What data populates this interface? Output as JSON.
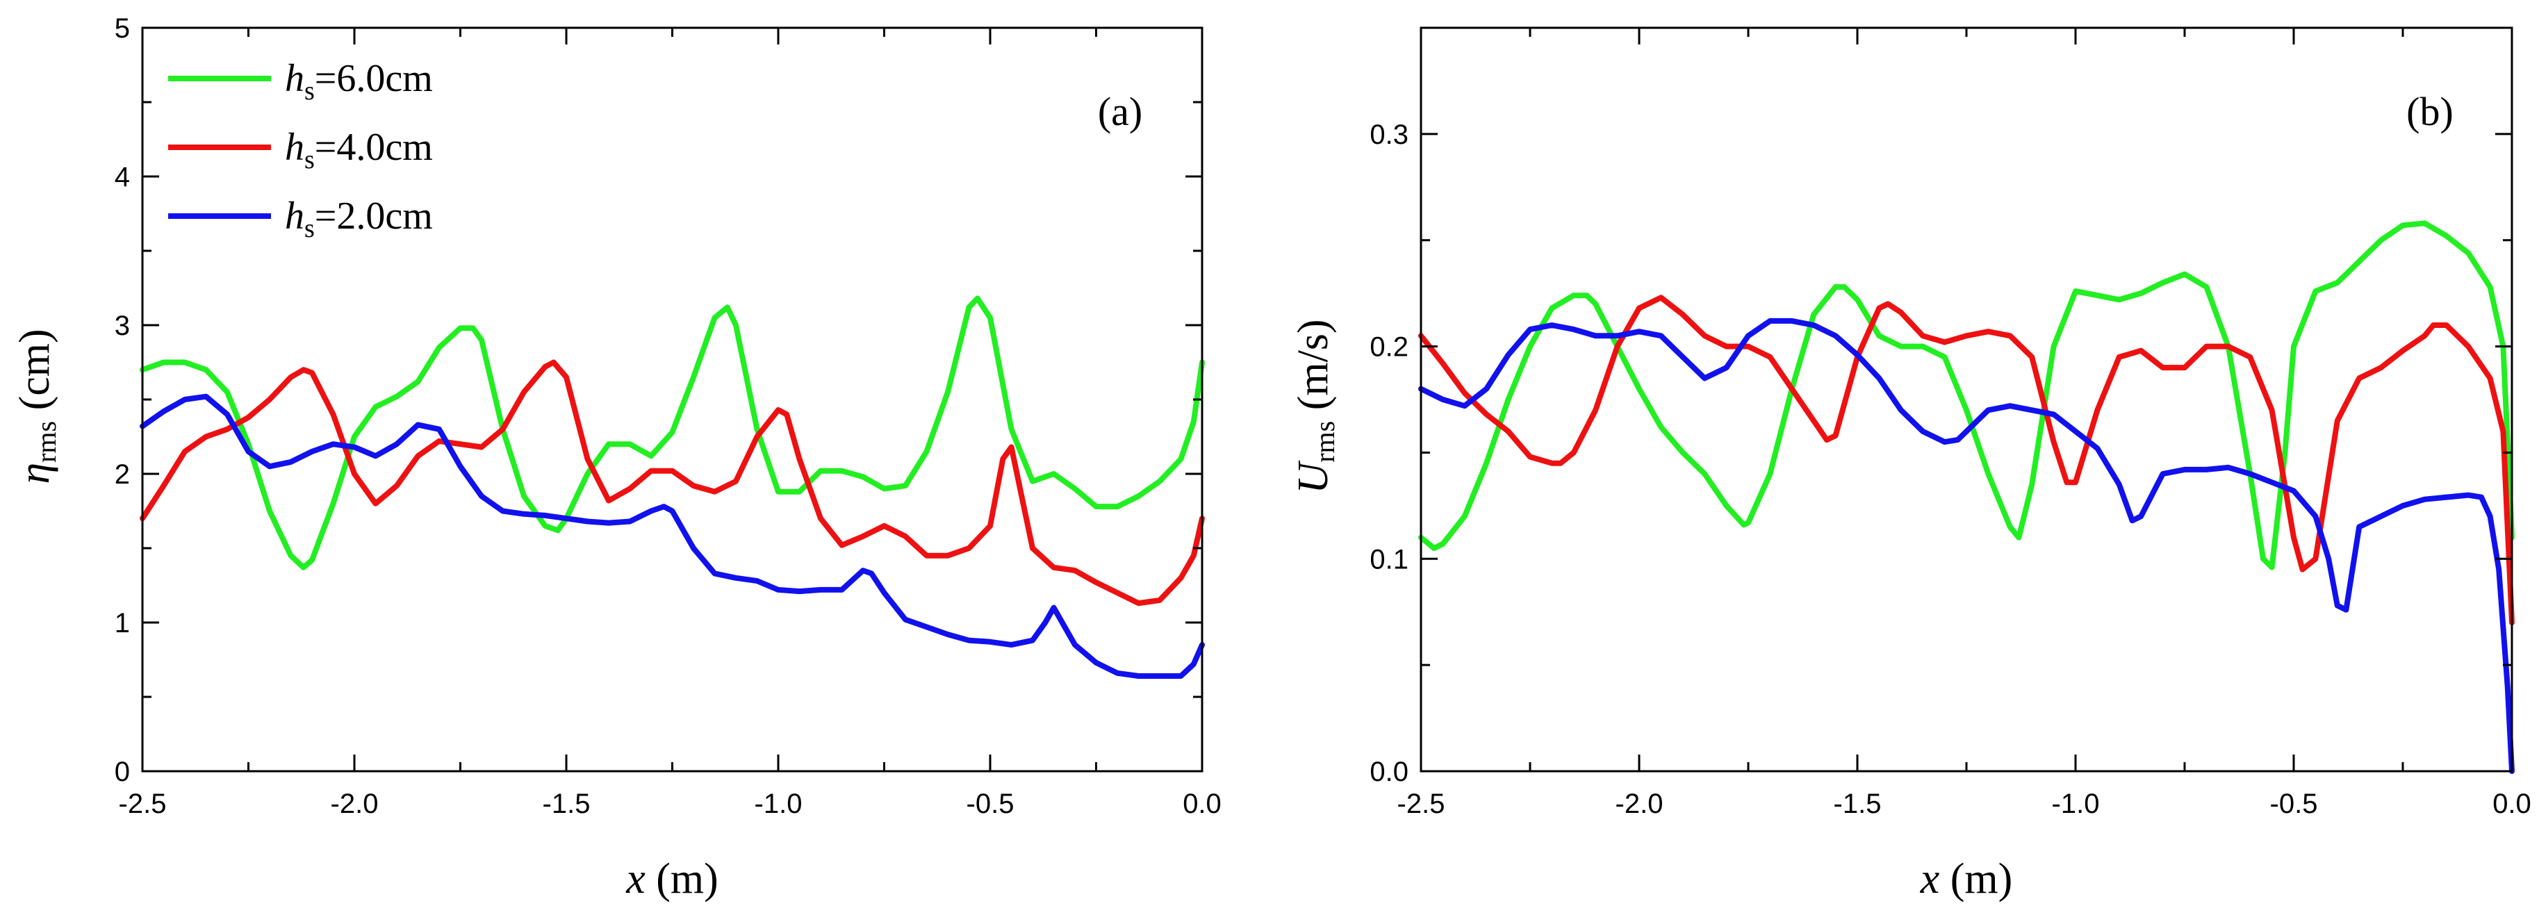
{
  "chart_data": [
    {
      "type": "line",
      "panel_label": "(a)",
      "xlabel": {
        "var": "x",
        "unit": "(m)"
      },
      "ylabel": {
        "var": "η",
        "sub": "rms",
        "unit": "(cm)"
      },
      "xlim": [
        -2.5,
        0.0
      ],
      "ylim": [
        0,
        5
      ],
      "xticks": [
        -2.5,
        -2.0,
        -1.5,
        -1.0,
        -0.5,
        0.0
      ],
      "xtick_labels": [
        "-2.5",
        "-2.0",
        "-1.5",
        "-1.0",
        "-0.5",
        "0.0"
      ],
      "yticks": [
        0,
        1,
        2,
        3,
        4,
        5
      ],
      "ytick_labels": [
        "0",
        "1",
        "2",
        "3",
        "4",
        "5"
      ],
      "legend_position": "top-left",
      "series": [
        {
          "name": "6.0cm",
          "prefix": "h",
          "sub": "s",
          "suffix": "=6.0cm",
          "color": "#22ee22",
          "x": [
            -2.5,
            -2.45,
            -2.4,
            -2.35,
            -2.3,
            -2.25,
            -2.2,
            -2.15,
            -2.12,
            -2.1,
            -2.05,
            -2.0,
            -1.95,
            -1.9,
            -1.85,
            -1.8,
            -1.75,
            -1.72,
            -1.7,
            -1.65,
            -1.6,
            -1.55,
            -1.52,
            -1.5,
            -1.45,
            -1.4,
            -1.35,
            -1.3,
            -1.25,
            -1.2,
            -1.15,
            -1.12,
            -1.1,
            -1.05,
            -1.0,
            -0.95,
            -0.9,
            -0.85,
            -0.8,
            -0.75,
            -0.7,
            -0.65,
            -0.6,
            -0.55,
            -0.53,
            -0.5,
            -0.45,
            -0.4,
            -0.35,
            -0.3,
            -0.25,
            -0.2,
            -0.15,
            -0.1,
            -0.05,
            -0.02,
            0.0
          ],
          "y": [
            2.7,
            2.75,
            2.75,
            2.7,
            2.55,
            2.2,
            1.75,
            1.45,
            1.37,
            1.42,
            1.8,
            2.25,
            2.45,
            2.52,
            2.62,
            2.85,
            2.98,
            2.98,
            2.9,
            2.3,
            1.85,
            1.65,
            1.62,
            1.7,
            2.0,
            2.2,
            2.2,
            2.12,
            2.28,
            2.65,
            3.05,
            3.12,
            3.0,
            2.3,
            1.88,
            1.88,
            2.02,
            2.02,
            1.98,
            1.9,
            1.92,
            2.15,
            2.55,
            3.12,
            3.18,
            3.05,
            2.3,
            1.95,
            2.0,
            1.9,
            1.78,
            1.78,
            1.85,
            1.95,
            2.1,
            2.35,
            2.75
          ]
        },
        {
          "name": "4.0cm",
          "prefix": "h",
          "sub": "s",
          "suffix": "=4.0cm",
          "color": "#ee1111",
          "x": [
            -2.5,
            -2.45,
            -2.4,
            -2.35,
            -2.3,
            -2.25,
            -2.2,
            -2.15,
            -2.12,
            -2.1,
            -2.05,
            -2.0,
            -1.95,
            -1.9,
            -1.85,
            -1.8,
            -1.75,
            -1.7,
            -1.65,
            -1.6,
            -1.55,
            -1.53,
            -1.5,
            -1.45,
            -1.4,
            -1.35,
            -1.3,
            -1.25,
            -1.2,
            -1.15,
            -1.1,
            -1.05,
            -1.0,
            -0.98,
            -0.95,
            -0.9,
            -0.85,
            -0.8,
            -0.75,
            -0.7,
            -0.65,
            -0.6,
            -0.55,
            -0.5,
            -0.47,
            -0.45,
            -0.4,
            -0.35,
            -0.3,
            -0.25,
            -0.2,
            -0.15,
            -0.1,
            -0.05,
            -0.02,
            0.0
          ],
          "y": [
            1.7,
            1.92,
            2.15,
            2.25,
            2.3,
            2.38,
            2.5,
            2.65,
            2.7,
            2.68,
            2.4,
            2.0,
            1.8,
            1.92,
            2.12,
            2.22,
            2.2,
            2.18,
            2.3,
            2.55,
            2.72,
            2.75,
            2.65,
            2.1,
            1.82,
            1.9,
            2.02,
            2.02,
            1.92,
            1.88,
            1.95,
            2.25,
            2.43,
            2.4,
            2.1,
            1.7,
            1.52,
            1.58,
            1.65,
            1.58,
            1.45,
            1.45,
            1.5,
            1.65,
            2.1,
            2.18,
            1.5,
            1.37,
            1.35,
            1.27,
            1.2,
            1.13,
            1.15,
            1.3,
            1.45,
            1.7
          ]
        },
        {
          "name": "2.0cm",
          "prefix": "h",
          "sub": "s",
          "suffix": "=2.0cm",
          "color": "#1111ee",
          "x": [
            -2.5,
            -2.45,
            -2.4,
            -2.35,
            -2.3,
            -2.25,
            -2.2,
            -2.15,
            -2.1,
            -2.05,
            -2.0,
            -1.95,
            -1.9,
            -1.85,
            -1.8,
            -1.75,
            -1.7,
            -1.65,
            -1.6,
            -1.55,
            -1.5,
            -1.45,
            -1.4,
            -1.35,
            -1.3,
            -1.27,
            -1.25,
            -1.2,
            -1.15,
            -1.1,
            -1.05,
            -1.0,
            -0.95,
            -0.9,
            -0.85,
            -0.8,
            -0.78,
            -0.75,
            -0.7,
            -0.65,
            -0.6,
            -0.55,
            -0.5,
            -0.45,
            -0.4,
            -0.37,
            -0.35,
            -0.3,
            -0.25,
            -0.2,
            -0.15,
            -0.1,
            -0.05,
            -0.02,
            0.0
          ],
          "y": [
            2.32,
            2.42,
            2.5,
            2.52,
            2.4,
            2.15,
            2.05,
            2.08,
            2.15,
            2.2,
            2.18,
            2.12,
            2.2,
            2.33,
            2.3,
            2.05,
            1.85,
            1.75,
            1.73,
            1.72,
            1.7,
            1.68,
            1.67,
            1.68,
            1.75,
            1.78,
            1.75,
            1.5,
            1.33,
            1.3,
            1.28,
            1.22,
            1.21,
            1.22,
            1.22,
            1.35,
            1.33,
            1.2,
            1.02,
            0.97,
            0.92,
            0.88,
            0.87,
            0.85,
            0.88,
            1.0,
            1.1,
            0.85,
            0.73,
            0.66,
            0.64,
            0.64,
            0.64,
            0.72,
            0.85
          ]
        }
      ]
    },
    {
      "type": "line",
      "panel_label": "(b)",
      "xlabel": {
        "var": "x",
        "unit": "(m)"
      },
      "ylabel": {
        "var": "U",
        "sub": "rms",
        "unit": "(m/s)"
      },
      "xlim": [
        -2.5,
        0.0
      ],
      "ylim": [
        0.0,
        0.35
      ],
      "xticks": [
        -2.5,
        -2.0,
        -1.5,
        -1.0,
        -0.5,
        0.0
      ],
      "xtick_labels": [
        "-2.5",
        "-2.0",
        "-1.5",
        "-1.0",
        "-0.5",
        "0.0"
      ],
      "yticks": [
        0.0,
        0.1,
        0.2,
        0.3
      ],
      "ytick_labels": [
        "0.0",
        "0.1",
        "0.2",
        "0.3"
      ],
      "series": [
        {
          "name": "6.0cm",
          "color": "#22ee22",
          "x": [
            -2.5,
            -2.47,
            -2.45,
            -2.4,
            -2.35,
            -2.3,
            -2.25,
            -2.2,
            -2.15,
            -2.12,
            -2.1,
            -2.05,
            -2.0,
            -1.95,
            -1.9,
            -1.85,
            -1.8,
            -1.76,
            -1.75,
            -1.7,
            -1.65,
            -1.6,
            -1.55,
            -1.53,
            -1.5,
            -1.45,
            -1.4,
            -1.35,
            -1.3,
            -1.25,
            -1.2,
            -1.15,
            -1.13,
            -1.1,
            -1.05,
            -1.0,
            -0.95,
            -0.9,
            -0.85,
            -0.8,
            -0.75,
            -0.7,
            -0.65,
            -0.6,
            -0.57,
            -0.55,
            -0.52,
            -0.5,
            -0.45,
            -0.4,
            -0.35,
            -0.3,
            -0.25,
            -0.2,
            -0.15,
            -0.1,
            -0.05,
            -0.02,
            0.0
          ],
          "y": [
            0.11,
            0.105,
            0.107,
            0.12,
            0.145,
            0.175,
            0.2,
            0.218,
            0.224,
            0.224,
            0.22,
            0.2,
            0.18,
            0.162,
            0.15,
            0.14,
            0.125,
            0.116,
            0.117,
            0.14,
            0.18,
            0.215,
            0.228,
            0.228,
            0.222,
            0.205,
            0.2,
            0.2,
            0.195,
            0.17,
            0.14,
            0.115,
            0.11,
            0.135,
            0.2,
            0.226,
            0.224,
            0.222,
            0.225,
            0.23,
            0.234,
            0.228,
            0.2,
            0.14,
            0.1,
            0.096,
            0.15,
            0.2,
            0.226,
            0.23,
            0.24,
            0.25,
            0.257,
            0.258,
            0.252,
            0.244,
            0.228,
            0.2,
            0.11
          ]
        },
        {
          "name": "4.0cm",
          "color": "#ee1111",
          "x": [
            -2.5,
            -2.45,
            -2.4,
            -2.35,
            -2.3,
            -2.25,
            -2.2,
            -2.18,
            -2.15,
            -2.1,
            -2.05,
            -2.0,
            -1.95,
            -1.9,
            -1.85,
            -1.8,
            -1.75,
            -1.7,
            -1.65,
            -1.6,
            -1.57,
            -1.55,
            -1.5,
            -1.45,
            -1.43,
            -1.4,
            -1.35,
            -1.3,
            -1.25,
            -1.2,
            -1.15,
            -1.1,
            -1.05,
            -1.02,
            -1.0,
            -0.95,
            -0.9,
            -0.85,
            -0.8,
            -0.75,
            -0.7,
            -0.65,
            -0.6,
            -0.55,
            -0.5,
            -0.48,
            -0.45,
            -0.4,
            -0.35,
            -0.3,
            -0.25,
            -0.2,
            -0.18,
            -0.15,
            -0.1,
            -0.05,
            -0.02,
            0.0
          ],
          "y": [
            0.205,
            0.192,
            0.178,
            0.168,
            0.16,
            0.148,
            0.145,
            0.145,
            0.15,
            0.17,
            0.2,
            0.218,
            0.223,
            0.215,
            0.205,
            0.2,
            0.2,
            0.195,
            0.18,
            0.165,
            0.156,
            0.158,
            0.195,
            0.218,
            0.22,
            0.216,
            0.205,
            0.202,
            0.205,
            0.207,
            0.205,
            0.195,
            0.155,
            0.136,
            0.136,
            0.17,
            0.195,
            0.198,
            0.19,
            0.19,
            0.2,
            0.2,
            0.195,
            0.17,
            0.11,
            0.095,
            0.1,
            0.165,
            0.185,
            0.19,
            0.198,
            0.205,
            0.21,
            0.21,
            0.2,
            0.185,
            0.16,
            0.07
          ]
        },
        {
          "name": "2.0cm",
          "color": "#1111ee",
          "x": [
            -2.5,
            -2.45,
            -2.4,
            -2.35,
            -2.3,
            -2.25,
            -2.2,
            -2.15,
            -2.1,
            -2.05,
            -2.0,
            -1.95,
            -1.9,
            -1.85,
            -1.8,
            -1.75,
            -1.7,
            -1.65,
            -1.6,
            -1.55,
            -1.5,
            -1.45,
            -1.4,
            -1.35,
            -1.3,
            -1.27,
            -1.25,
            -1.2,
            -1.15,
            -1.1,
            -1.05,
            -1.0,
            -0.95,
            -0.9,
            -0.87,
            -0.85,
            -0.8,
            -0.75,
            -0.7,
            -0.65,
            -0.6,
            -0.55,
            -0.5,
            -0.45,
            -0.42,
            -0.4,
            -0.38,
            -0.35,
            -0.3,
            -0.25,
            -0.2,
            -0.15,
            -0.1,
            -0.07,
            -0.05,
            -0.03,
            -0.01,
            0.0
          ],
          "y": [
            0.18,
            0.175,
            0.172,
            0.18,
            0.196,
            0.208,
            0.21,
            0.208,
            0.205,
            0.205,
            0.207,
            0.205,
            0.195,
            0.185,
            0.19,
            0.205,
            0.212,
            0.212,
            0.21,
            0.205,
            0.196,
            0.185,
            0.17,
            0.16,
            0.155,
            0.156,
            0.16,
            0.17,
            0.172,
            0.17,
            0.168,
            0.16,
            0.152,
            0.135,
            0.118,
            0.12,
            0.14,
            0.142,
            0.142,
            0.143,
            0.14,
            0.136,
            0.132,
            0.12,
            0.1,
            0.078,
            0.076,
            0.115,
            0.12,
            0.125,
            0.128,
            0.129,
            0.13,
            0.129,
            0.12,
            0.095,
            0.04,
            0.0
          ]
        }
      ]
    }
  ]
}
